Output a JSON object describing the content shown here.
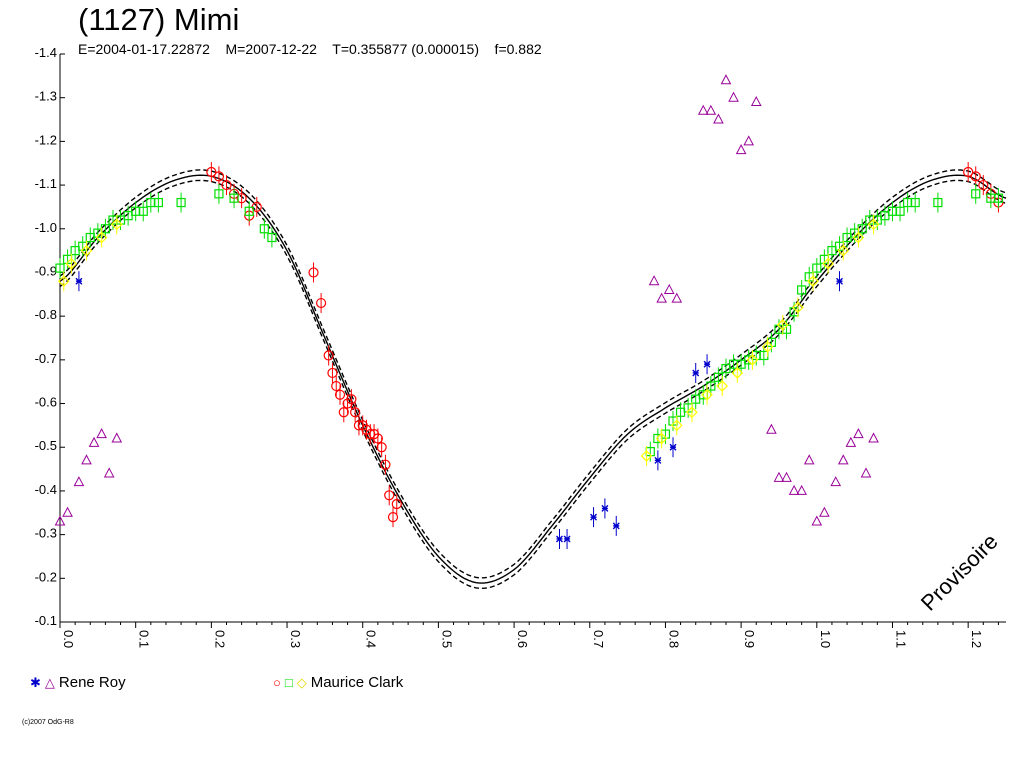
{
  "header": {
    "title": "(1127) Mimi",
    "subtitle": "E=2004-01-17.22872    M=2007-12-22    T=0.355877 (0.000015)    f=0.882"
  },
  "watermark": "Provisoire",
  "copyright": "(c)2007 OdG-R8",
  "legend": {
    "rene_roy": "Rene Roy",
    "maurice_clark": "Maurice Clark"
  },
  "colors": {
    "roy_blue": "#0000cc",
    "roy_purple": "#990099",
    "clark_red": "#ff0000",
    "clark_green": "#00e000",
    "clark_yellow": "#ffff00",
    "curve": "#000000"
  },
  "chart_data": {
    "type": "scatter",
    "title": "(1127) Mimi",
    "xlabel": "",
    "ylabel": "",
    "xlim": [
      0.0,
      1.25
    ],
    "ylim": [
      -0.1,
      -1.4
    ],
    "x_ticks": [
      "0.0",
      "0.1",
      "0.2",
      "0.3",
      "0.4",
      "0.5",
      "0.6",
      "0.7",
      "0.8",
      "0.9",
      "1.0",
      "1.1",
      "1.2"
    ],
    "y_ticks": [
      "-1.4",
      "-1.3",
      "-1.2",
      "-1.1",
      "-1.0",
      "-0.9",
      "-0.8",
      "-0.7",
      "-0.6",
      "-0.5",
      "-0.4",
      "-0.3",
      "-0.2",
      "-0.1"
    ],
    "fit_curve": {
      "phase": [
        0.0,
        0.05,
        0.1,
        0.15,
        0.2,
        0.25,
        0.3,
        0.35,
        0.4,
        0.45,
        0.5,
        0.55,
        0.6,
        0.65,
        0.7,
        0.75,
        0.8,
        0.85,
        0.9,
        0.95,
        1.0,
        1.05,
        1.1,
        1.15,
        1.2,
        1.25
      ],
      "mag": [
        -0.88,
        -0.98,
        -1.06,
        -1.11,
        -1.12,
        -1.07,
        -0.95,
        -0.75,
        -0.55,
        -0.38,
        -0.25,
        -0.19,
        -0.22,
        -0.32,
        -0.43,
        -0.53,
        -0.59,
        -0.64,
        -0.7,
        -0.77,
        -0.88,
        -0.98,
        -1.06,
        -1.11,
        -1.12,
        -1.07
      ],
      "envelope": 0.012
    },
    "series": [
      {
        "name": "Rene Roy",
        "marker": "asterisk",
        "color": "#0000cc",
        "x": [
          0.025,
          0.66,
          0.67,
          0.705,
          0.72,
          0.735,
          0.84,
          0.855,
          0.79,
          0.81,
          1.03
        ],
        "y": [
          -0.88,
          -0.29,
          -0.29,
          -0.34,
          -0.36,
          -0.32,
          -0.67,
          -0.69,
          -0.47,
          -0.5,
          -0.88
        ]
      },
      {
        "name": "Rene Roy",
        "marker": "triangle",
        "color": "#990099",
        "x": [
          0.0,
          0.01,
          0.025,
          0.035,
          0.045,
          0.055,
          0.065,
          0.075,
          0.785,
          0.795,
          0.805,
          0.815,
          0.85,
          0.86,
          0.87,
          0.88,
          0.89,
          0.9,
          0.91,
          0.92,
          0.94,
          0.95,
          0.96,
          0.97,
          0.98,
          0.99,
          1.0,
          1.01,
          1.025,
          1.035,
          1.045,
          1.055,
          1.065,
          1.075
        ],
        "y": [
          -0.33,
          -0.35,
          -0.42,
          -0.47,
          -0.51,
          -0.53,
          -0.44,
          -0.52,
          -0.88,
          -0.84,
          -0.86,
          -0.84,
          -1.27,
          -1.27,
          -1.25,
          -1.34,
          -1.3,
          -1.18,
          -1.2,
          -1.29,
          -0.54,
          -0.43,
          -0.43,
          -0.4,
          -0.4,
          -0.47,
          -0.33,
          -0.35,
          -0.42,
          -0.47,
          -0.51,
          -0.53,
          -0.44,
          -0.52
        ]
      },
      {
        "name": "Maurice Clark",
        "marker": "circle",
        "color": "#ff0000",
        "x": [
          0.2,
          0.21,
          0.22,
          0.23,
          0.24,
          0.25,
          0.26,
          0.335,
          0.345,
          0.355,
          0.36,
          0.365,
          0.37,
          0.375,
          0.38,
          0.385,
          0.39,
          0.395,
          0.4,
          0.405,
          0.41,
          0.415,
          0.42,
          0.425,
          0.43,
          0.435,
          0.44,
          0.445,
          1.2,
          1.21,
          1.22,
          1.23,
          1.24
        ],
        "y": [
          -1.13,
          -1.12,
          -1.1,
          -1.08,
          -1.07,
          -1.03,
          -1.05,
          -0.9,
          -0.83,
          -0.71,
          -0.67,
          -0.64,
          -0.62,
          -0.58,
          -0.6,
          -0.61,
          -0.58,
          -0.55,
          -0.55,
          -0.54,
          -0.53,
          -0.53,
          -0.52,
          -0.5,
          -0.46,
          -0.39,
          -0.34,
          -0.37,
          -1.13,
          -1.12,
          -1.1,
          -1.08,
          -1.06
        ]
      },
      {
        "name": "Maurice Clark",
        "marker": "square",
        "color": "#00e000",
        "x": [
          0.0,
          0.01,
          0.02,
          0.03,
          0.04,
          0.05,
          0.06,
          0.07,
          0.08,
          0.09,
          0.1,
          0.11,
          0.12,
          0.13,
          0.16,
          0.21,
          0.23,
          0.25,
          0.27,
          0.28,
          0.78,
          0.79,
          0.8,
          0.81,
          0.82,
          0.83,
          0.84,
          0.85,
          0.86,
          0.87,
          0.88,
          0.89,
          0.9,
          0.91,
          0.92,
          0.93,
          0.94,
          0.95,
          0.96,
          0.97,
          0.98,
          0.99,
          1.0,
          1.01,
          1.02,
          1.03,
          1.04,
          1.05,
          1.06,
          1.07,
          1.08,
          1.09,
          1.1,
          1.11,
          1.12,
          1.13,
          1.16,
          1.21,
          1.23,
          1.24
        ],
        "y": [
          -0.91,
          -0.93,
          -0.95,
          -0.96,
          -0.98,
          -0.99,
          -1.0,
          -1.02,
          -1.02,
          -1.03,
          -1.04,
          -1.04,
          -1.06,
          -1.06,
          -1.06,
          -1.08,
          -1.07,
          -1.04,
          -1.0,
          -0.98,
          -0.49,
          -0.52,
          -0.53,
          -0.56,
          -0.58,
          -0.59,
          -0.61,
          -0.62,
          -0.64,
          -0.66,
          -0.68,
          -0.69,
          -0.69,
          -0.7,
          -0.71,
          -0.71,
          -0.74,
          -0.77,
          -0.77,
          -0.81,
          -0.86,
          -0.89,
          -0.91,
          -0.93,
          -0.95,
          -0.96,
          -0.98,
          -0.99,
          -1.0,
          -1.02,
          -1.02,
          -1.03,
          -1.04,
          -1.04,
          -1.06,
          -1.06,
          -1.06,
          -1.08,
          -1.07,
          -1.07
        ]
      },
      {
        "name": "Maurice Clark",
        "marker": "diamond",
        "color": "#ffff00",
        "x": [
          0.005,
          0.015,
          0.035,
          0.055,
          0.075,
          0.775,
          0.795,
          0.815,
          0.835,
          0.855,
          0.875,
          0.895,
          0.915,
          0.935,
          0.955,
          0.975,
          0.995,
          1.015,
          1.035,
          1.055,
          1.075
        ],
        "y": [
          -0.88,
          -0.92,
          -0.95,
          -0.98,
          -1.01,
          -0.48,
          -0.52,
          -0.55,
          -0.58,
          -0.62,
          -0.64,
          -0.67,
          -0.7,
          -0.73,
          -0.78,
          -0.82,
          -0.88,
          -0.92,
          -0.95,
          -0.98,
          -1.01
        ]
      }
    ]
  }
}
